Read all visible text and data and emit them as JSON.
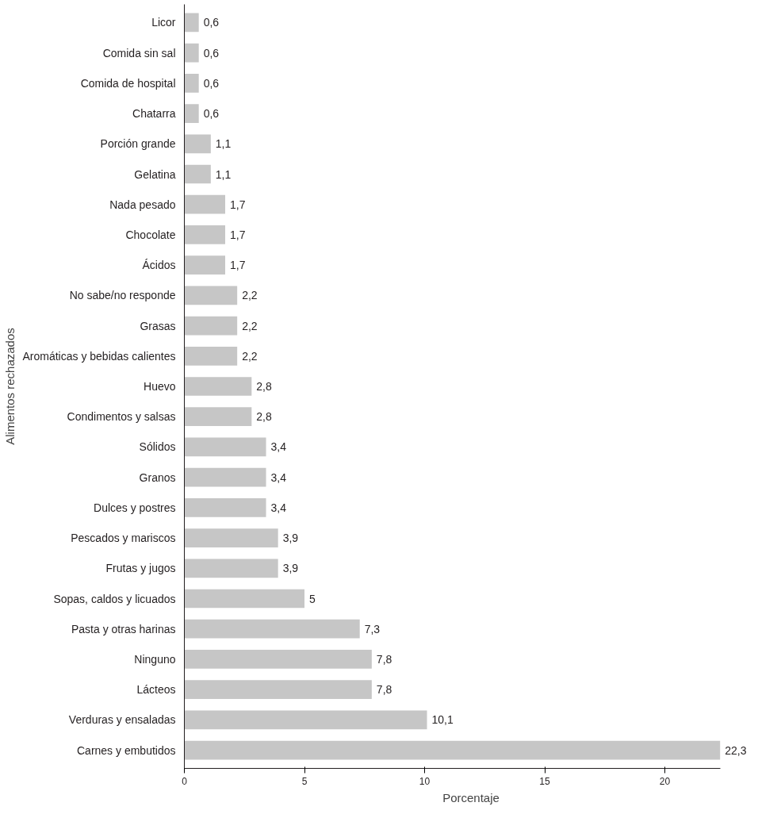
{
  "chart_data": {
    "type": "bar",
    "orientation": "horizontal",
    "xlabel": "Porcentaje",
    "ylabel": "Alimentos rechazados",
    "categories": [
      "Licor",
      "Comida sin sal",
      "Comida de hospital",
      "Chatarra",
      "Porción grande",
      "Gelatina",
      "Nada pesado",
      "Chocolate",
      "Ácidos",
      "No sabe/no responde",
      "Grasas",
      "Aromáticas y bebidas calientes",
      "Huevo",
      "Condimentos y salsas",
      "Sólidos",
      "Granos",
      "Dulces y postres",
      "Pescados y mariscos",
      "Frutas y jugos",
      "Sopas, caldos y licuados",
      "Pasta y otras harinas",
      "Ninguno",
      "Lácteos",
      "Verduras y ensaladas",
      "Carnes y embutidos"
    ],
    "values": [
      0.6,
      0.6,
      0.6,
      0.6,
      1.1,
      1.1,
      1.7,
      1.7,
      1.7,
      2.2,
      2.2,
      2.2,
      2.8,
      2.8,
      3.4,
      3.4,
      3.4,
      3.9,
      3.9,
      5,
      7.3,
      7.8,
      7.8,
      10.1,
      22.3
    ],
    "value_labels": [
      "0,6",
      "0,6",
      "0,6",
      "0,6",
      "1,1",
      "1,1",
      "1,7",
      "1,7",
      "1,7",
      "2,2",
      "2,2",
      "2,2",
      "2,8",
      "2,8",
      "3,4",
      "3,4",
      "3,4",
      "3,9",
      "3,9",
      "5",
      "7,3",
      "7,8",
      "7,8",
      "10,1",
      "22,3"
    ],
    "color": "#c6c6c6",
    "xlim": [
      0,
      22.3
    ],
    "xticks": [
      0,
      5,
      10,
      15,
      20
    ],
    "grid": false
  }
}
